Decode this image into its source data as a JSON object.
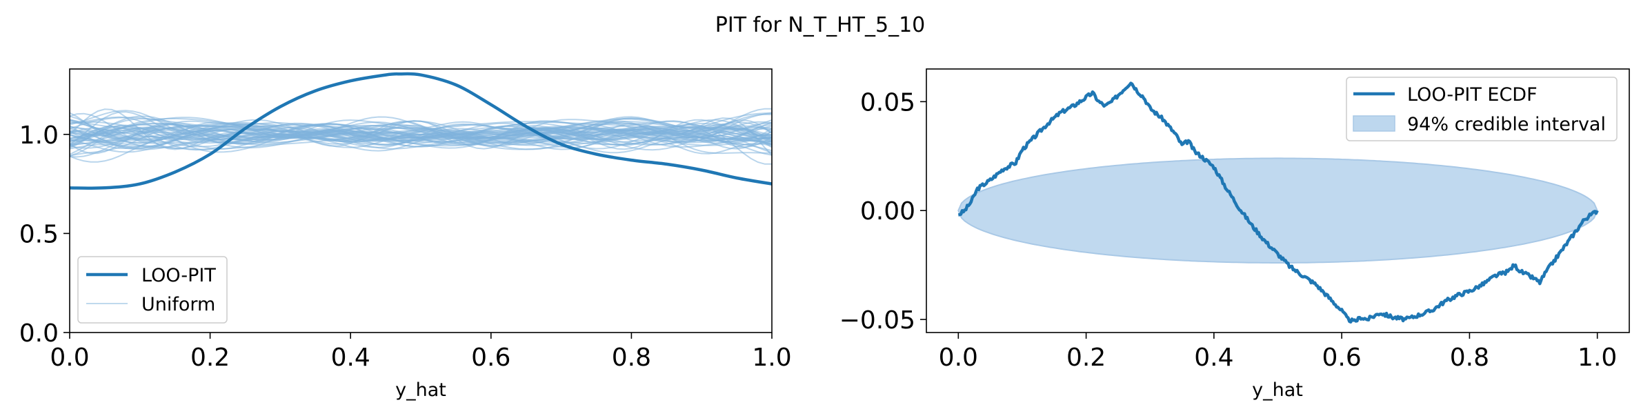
{
  "title": "PIT for N_T_HT_5_10",
  "chart_data": [
    {
      "type": "line",
      "xlabel": "y_hat",
      "ylabel": "",
      "xlim": [
        0.0,
        1.0
      ],
      "ylim": [
        0.0,
        1.33
      ],
      "xticks": [
        "0.0",
        "0.2",
        "0.4",
        "0.6",
        "0.8",
        "1.0"
      ],
      "yticks": [
        "0.0",
        "0.5",
        "1.0"
      ],
      "legend": {
        "placement": "lower-left",
        "entries": [
          "LOO-PIT",
          "Uniform"
        ]
      },
      "series": [
        {
          "name": "LOO-PIT",
          "color": "#1f77b4",
          "x": [
            0.0,
            0.05,
            0.1,
            0.15,
            0.2,
            0.25,
            0.3,
            0.35,
            0.4,
            0.45,
            0.47,
            0.5,
            0.55,
            0.6,
            0.65,
            0.7,
            0.75,
            0.8,
            0.85,
            0.9,
            0.95,
            1.0
          ],
          "values": [
            0.73,
            0.73,
            0.75,
            0.81,
            0.9,
            1.03,
            1.14,
            1.22,
            1.27,
            1.3,
            1.305,
            1.3,
            1.25,
            1.15,
            1.04,
            0.95,
            0.9,
            0.87,
            0.85,
            0.82,
            0.78,
            0.75
          ]
        },
        {
          "name": "Uniform",
          "color": "#7fb3dc",
          "note_count": 50,
          "center": 1.0,
          "spread": [
            0.85,
            1.18
          ]
        }
      ]
    },
    {
      "type": "line",
      "xlabel": "y_hat",
      "ylabel": "",
      "xlim": [
        -0.05,
        1.05
      ],
      "ylim": [
        -0.056,
        0.065
      ],
      "xticks": [
        "0.0",
        "0.2",
        "0.4",
        "0.6",
        "0.8",
        "1.0"
      ],
      "yticks": [
        "−0.05",
        "0.00",
        "0.05"
      ],
      "ytick_values": [
        -0.05,
        0.0,
        0.05
      ],
      "legend": {
        "placement": "top-right",
        "entries": [
          "LOO-PIT ECDF",
          "94% credible interval"
        ]
      },
      "credible_interval": {
        "x": [
          0.0,
          1.0
        ],
        "half_width_max": 0.024,
        "color": "#bdd7ee"
      },
      "series": [
        {
          "name": "LOO-PIT ECDF",
          "color": "#1f77b4",
          "x": [
            0.0,
            0.01,
            0.02,
            0.03,
            0.05,
            0.07,
            0.09,
            0.1,
            0.12,
            0.14,
            0.16,
            0.18,
            0.2,
            0.21,
            0.22,
            0.23,
            0.24,
            0.25,
            0.26,
            0.27,
            0.28,
            0.29,
            0.3,
            0.32,
            0.34,
            0.35,
            0.36,
            0.37,
            0.38,
            0.4,
            0.42,
            0.44,
            0.46,
            0.48,
            0.5,
            0.52,
            0.54,
            0.56,
            0.58,
            0.6,
            0.61,
            0.62,
            0.63,
            0.64,
            0.66,
            0.68,
            0.7,
            0.72,
            0.74,
            0.76,
            0.78,
            0.8,
            0.82,
            0.84,
            0.86,
            0.87,
            0.88,
            0.9,
            0.91,
            0.92,
            0.94,
            0.96,
            0.97,
            0.98,
            0.99,
            1.0
          ],
          "values": [
            -0.002,
            0.0,
            0.004,
            0.01,
            0.014,
            0.019,
            0.022,
            0.028,
            0.034,
            0.04,
            0.045,
            0.048,
            0.052,
            0.054,
            0.05,
            0.048,
            0.05,
            0.053,
            0.056,
            0.059,
            0.055,
            0.052,
            0.047,
            0.042,
            0.035,
            0.03,
            0.032,
            0.027,
            0.025,
            0.02,
            0.01,
            0.001,
            -0.007,
            -0.014,
            -0.02,
            -0.026,
            -0.03,
            -0.034,
            -0.04,
            -0.046,
            -0.05,
            -0.051,
            -0.049,
            -0.05,
            -0.047,
            -0.049,
            -0.05,
            -0.048,
            -0.046,
            -0.042,
            -0.039,
            -0.037,
            -0.034,
            -0.03,
            -0.028,
            -0.025,
            -0.028,
            -0.031,
            -0.033,
            -0.028,
            -0.02,
            -0.012,
            -0.008,
            -0.004,
            -0.002,
            0.0
          ]
        }
      ]
    }
  ]
}
